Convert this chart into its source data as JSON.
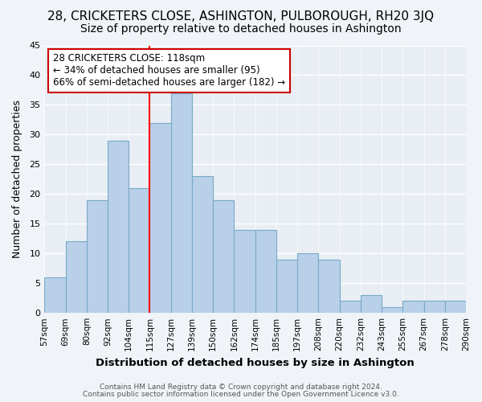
{
  "title": "28, CRICKETERS CLOSE, ASHINGTON, PULBOROUGH, RH20 3JQ",
  "subtitle": "Size of property relative to detached houses in Ashington",
  "xlabel": "Distribution of detached houses by size in Ashington",
  "ylabel": "Number of detached properties",
  "bar_values": [
    6,
    12,
    19,
    29,
    21,
    32,
    37,
    23,
    19,
    14,
    14,
    9,
    10,
    9,
    2,
    3,
    1,
    2,
    2,
    2
  ],
  "xtick_labels": [
    "57sqm",
    "69sqm",
    "80sqm",
    "92sqm",
    "104sqm",
    "115sqm",
    "127sqm",
    "139sqm",
    "150sqm",
    "162sqm",
    "174sqm",
    "185sqm",
    "197sqm",
    "208sqm",
    "220sqm",
    "232sqm",
    "243sqm",
    "255sqm",
    "267sqm",
    "278sqm",
    "290sqm"
  ],
  "bar_color": "#b8d0e8",
  "bar_edge_color": "#7aaac8",
  "red_line_x": 5,
  "ylim": [
    0,
    45
  ],
  "yticks": [
    0,
    5,
    10,
    15,
    20,
    25,
    30,
    35,
    40,
    45
  ],
  "annotation_title": "28 CRICKETERS CLOSE: 118sqm",
  "annotation_line1": "← 34% of detached houses are smaller (95)",
  "annotation_line2": "66% of semi-detached houses are larger (182) →",
  "footer_line1": "Contains HM Land Registry data © Crown copyright and database right 2024.",
  "footer_line2": "Contains public sector information licensed under the Open Government Licence v3.0.",
  "background_color": "#f0f4f8",
  "plot_background": "#e8eef4",
  "grid_color": "#ffffff",
  "title_fontsize": 11,
  "subtitle_fontsize": 10
}
